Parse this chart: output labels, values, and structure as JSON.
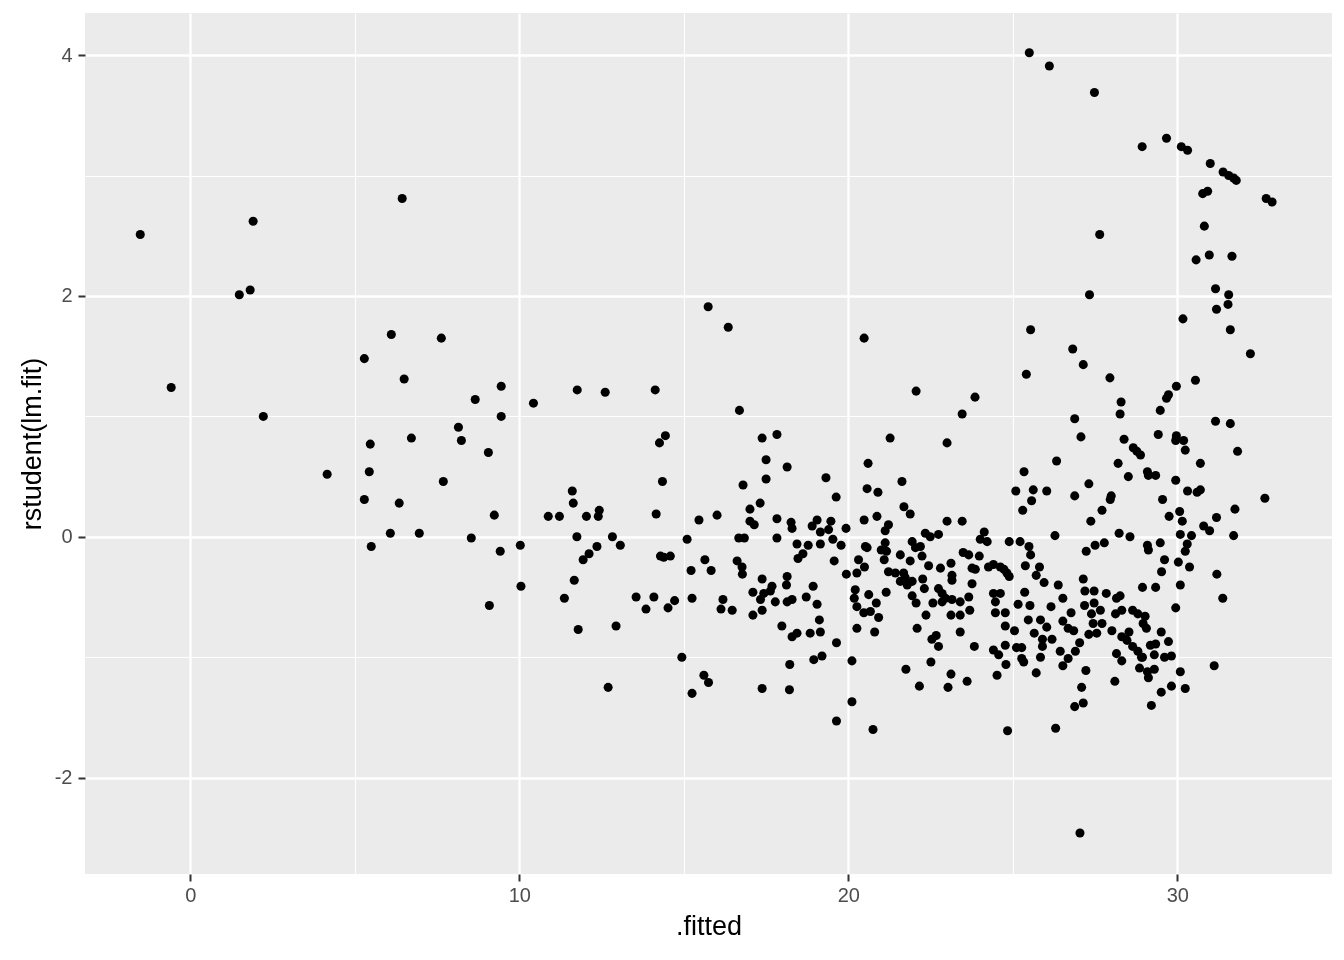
{
  "chart_data": {
    "type": "scatter",
    "xlabel": ".fitted",
    "ylabel": "rstudent(lm.fit)",
    "color": "#000000",
    "marker": "circle",
    "grid": true,
    "xlim": [
      -3.2,
      34.7
    ],
    "ylim": [
      -2.8,
      4.35
    ],
    "xticks": [
      0,
      {
        "value": 5,
        "label": null
      },
      10,
      {
        "value": 15,
        "label": null
      },
      20,
      {
        "value": 25,
        "label": null
      },
      30
    ],
    "yticks": [
      -2,
      {
        "value": -1,
        "label": null
      },
      0,
      {
        "value": 1,
        "label": null
      },
      2,
      {
        "value": 3,
        "label": null
      },
      4
    ],
    "x": [
      -1.52,
      -0.58,
      1.49,
      1.82,
      1.91,
      2.22,
      4.16,
      5.29,
      5.29,
      5.47,
      5.44,
      5.5,
      6.11,
      6.08,
      6.35,
      6.44,
      6.5,
      6.72,
      6.96,
      7.63,
      7.69,
      8.15,
      8.24,
      8.54,
      8.66,
      9.06,
      9.09,
      9.24,
      9.42,
      9.45,
      9.45,
      10.03,
      10.05,
      10.43,
      10.88,
      11.22,
      11.37,
      11.61,
      11.64,
      11.67,
      11.76,
      11.75,
      11.79,
      11.94,
      12.12,
      12.36,
      12.04,
      12.4,
      12.43,
      12.61,
      12.7,
      12.83,
      12.94,
      13.07,
      13.55,
      13.85,
      14.13,
      14.09,
      14.16,
      14.26,
      14.44,
      14.35,
      14.29,
      14.39,
      14.59,
      14.52,
      14.72,
      14.94,
      15.1,
      15.22,
      15.25,
      15.25,
      15.46,
      15.64,
      15.61,
      15.75,
      15.74,
      15.83,
      16.01,
      16.35,
      16.13,
      16.19,
      16.47,
      16.69,
      16.62,
      16.77,
      16.78,
      16.67,
      16.84,
      16.8,
      17.01,
      17.01,
      17.14,
      17.1,
      17.1,
      17.32,
      17.33,
      17.38,
      17.38,
      17.38,
      17.38,
      17.5,
      17.5,
      17.43,
      17.68,
      17.63,
      17.78,
      17.83,
      17.83,
      17.83,
      17.98,
      18.14,
      18.26,
      18.29,
      18.14,
      18.12,
      18.14,
      18.29,
      18.44,
      18.47,
      18.62,
      18.78,
      18.72,
      18.93,
      19.05,
      18.29,
      18.44,
      18.84,
      19.15,
      19.12,
      18.22,
      18.95,
      19.2,
      18.21,
      18.9,
      19.05,
      19.15,
      19.4,
      19.47,
      19.15,
      19.53,
      19.78,
      19.32,
      19.57,
      19.63,
      19.64,
      19.64,
      19.93,
      19.94,
      20.11,
      20.11,
      20.21,
      20.18,
      20.26,
      20.47,
      20.62,
      20.67,
      20.85,
      20.92,
      20.26,
      20.8,
      20.31,
      20.26,
      20.49,
      20.52,
      20.57,
      20.48,
      20.48,
      20.6,
      20.57,
      20.9,
      20.87,
      20.75,
      21.0,
      21.12,
      21.09,
      21.16,
      21.15,
      21.22,
      21.12,
      21.27,
      21.22,
      21.43,
      21.58,
      21.63,
      21.69,
      21.88,
      21.58,
      21.73,
      21.79,
      21.94,
      21.68,
      21.94,
      22.06,
      21.94,
      22.04,
      22.19,
      22.34,
      22.49,
      22.74,
      22.24,
      21.88,
      22.44,
      22.26,
      22.31,
      22.57,
      22.36,
      22.06,
      22.09,
      21.75,
      22.16,
      22.51,
      22.54,
      22.67,
      22.74,
      22.74,
      22.85,
      22.85,
      22.95,
      22.8,
      23.12,
      23.15,
      23.15,
      23.0,
      23.0,
      23.46,
      23.46,
      23.85,
      23.15,
      23.4,
      23.66,
      23.69,
      23.12,
      23.4,
      23.4,
      23.83,
      23.12,
      23.03,
      23.61,
      23.49,
      23.66,
      23.98,
      23.76,
      23.86,
      23.76,
      24.13,
      24.01,
      24.22,
      24.26,
      24.41,
      24.62,
      24.82,
      24.41,
      24.62,
      24.47,
      24.47,
      24.77,
      24.77,
      24.41,
      24.57,
      24.77,
      24.79,
      24.52,
      24.84,
      25.5,
      26.11,
      27.48,
      27.64,
      27.33,
      25.54,
      26.82,
      27.14,
      27.95,
      25.41,
      28.29,
      28.26,
      26.88,
      27.07,
      28.38,
      28.66,
      28.77,
      28.2,
      28.51,
      29.09,
      26.33,
      25.34,
      25.09,
      25.62,
      25.57,
      26.03,
      25.3,
      26.88,
      27.31,
      27.99,
      27.96,
      27.71,
      27.37,
      26.28,
      28.23,
      28.56,
      29.09,
      27.23,
      27.5,
      27.78,
      24.89,
      25.22,
      25.49,
      25.54,
      24.89,
      25.38,
      25.71,
      25.81,
      24.73,
      25.95,
      26.38,
      26.52,
      26.16,
      25.36,
      25.16,
      25.52,
      27.14,
      27.19,
      27.47,
      27.84,
      27.18,
      27.47,
      26.77,
      26.52,
      26.68,
      26.85,
      27.39,
      27.66,
      27.44,
      27.71,
      28.12,
      28.31,
      28.64,
      28.8,
      28.96,
      28.15,
      28.26,
      25.05,
      25.11,
      25.27,
      25.47,
      25.65,
      25.84,
      26.03,
      25.9,
      26.19,
      25.9,
      25.84,
      25.27,
      25.33,
      25.71,
      26.44,
      26.52,
      26.68,
      26.9,
      27.03,
      27.31,
      27.55,
      28.01,
      28.31,
      28.47,
      28.64,
      28.8,
      28.91,
      28.53,
      28.15,
      28.31,
      28.85,
      29.09,
      27.22,
      27.09,
      27.14,
      26.88,
      28.1,
      26.3,
      27.04,
      29.21,
      29.67,
      28.93,
      30.12,
      30.31,
      31.0,
      31.39,
      31.56,
      31.71,
      31.79,
      30.77,
      30.92,
      32.7,
      32.88,
      30.82,
      30.57,
      30.97,
      31.66,
      31.16,
      31.56,
      31.54,
      31.19,
      30.17,
      31.61,
      32.22,
      30.55,
      29.97,
      29.73,
      29.67,
      29.48,
      31.16,
      31.61,
      29.42,
      29.97,
      29.95,
      30.19,
      30.24,
      31.83,
      28.88,
      30.7,
      29.12,
      29.34,
      29.95,
      30.31,
      30.6,
      30.7,
      32.66,
      29.55,
      31.75,
      30.07,
      29.75,
      30.15,
      31.19,
      30.09,
      30.43,
      30.8,
      30.98,
      31.71,
      29.48,
      29.12,
      30.3,
      30.24,
      29.61,
      30.03,
      30.37,
      29.52,
      31.2,
      28.94,
      29.34,
      30.09,
      31.38,
      29.95,
      29.02,
      29.06,
      29.51,
      29.73,
      29.18,
      29.34,
      29.3,
      29.61,
      29.82,
      28.94,
      31.12,
      30.09,
      29.3,
      29.12,
      29.51,
      29.82,
      30.24
    ],
    "values": [
      2.51,
      1.24,
      2.01,
      2.05,
      2.62,
      1.0,
      0.52,
      1.48,
      0.31,
      0.77,
      0.54,
      -0.08,
      1.68,
      0.03,
      0.28,
      2.81,
      1.31,
      0.82,
      0.03,
      1.65,
      0.46,
      0.91,
      0.8,
      -0.01,
      1.14,
      0.7,
      -0.57,
      0.18,
      -0.12,
      1.25,
      1.0,
      -0.07,
      -0.41,
      1.11,
      0.17,
      0.17,
      -0.51,
      0.38,
      0.28,
      -0.36,
      1.22,
      0.0,
      -0.77,
      -0.19,
      -0.14,
      -0.08,
      0.17,
      0.17,
      0.22,
      1.2,
      -1.25,
      0.0,
      -0.74,
      -0.07,
      -0.5,
      -0.6,
      1.22,
      -0.5,
      0.19,
      0.78,
      0.84,
      0.46,
      -0.16,
      -0.17,
      -0.16,
      -0.59,
      -0.53,
      -1.0,
      -0.02,
      -0.28,
      -1.3,
      -0.51,
      0.14,
      -0.19,
      -1.15,
      -1.21,
      1.91,
      -0.28,
      0.18,
      1.74,
      -0.6,
      -0.52,
      -0.61,
      1.05,
      -0.2,
      -0.25,
      -0.31,
      -0.01,
      -0.01,
      0.43,
      0.23,
      0.13,
      0.1,
      -0.46,
      -0.65,
      0.28,
      -0.52,
      0.82,
      -0.35,
      -0.61,
      -1.26,
      0.64,
      0.48,
      -0.47,
      -0.41,
      -0.45,
      -0.54,
      0.85,
      0.15,
      -0.01,
      -0.74,
      0.58,
      0.12,
      0.07,
      -0.33,
      -0.4,
      -0.54,
      -0.52,
      -0.06,
      -0.18,
      -0.14,
      -0.07,
      -0.5,
      -0.41,
      -0.56,
      -0.83,
      -0.8,
      -0.8,
      -0.79,
      -0.69,
      -1.06,
      -1.02,
      -0.99,
      -1.27,
      0.09,
      0.14,
      0.04,
      0.06,
      0.13,
      -0.06,
      -0.02,
      -0.07,
      0.49,
      -0.2,
      0.33,
      -0.88,
      -1.53,
      0.07,
      -0.31,
      -1.03,
      -1.37,
      -0.44,
      -0.51,
      -0.58,
      -0.63,
      -0.48,
      -0.62,
      -0.55,
      -0.67,
      -0.76,
      -0.79,
      -0.19,
      -0.3,
      -0.25,
      -0.08,
      -0.09,
      0.14,
      1.65,
      0.61,
      0.4,
      0.37,
      0.17,
      -1.6,
      -0.11,
      -0.05,
      -0.19,
      -0.12,
      -0.46,
      0.1,
      0.05,
      0.82,
      -0.29,
      -0.3,
      -0.15,
      0.46,
      0.25,
      0.19,
      -0.37,
      -0.34,
      -0.4,
      -0.37,
      -0.3,
      -0.49,
      -0.55,
      -0.04,
      -0.09,
      -0.08,
      0.03,
      0.0,
      0.02,
      -0.16,
      -0.2,
      -0.24,
      -0.35,
      -0.43,
      -0.55,
      -0.65,
      1.21,
      -0.76,
      -1.1,
      -1.24,
      -1.04,
      -0.85,
      -0.82,
      -0.91,
      -0.43,
      -0.47,
      -0.54,
      -0.51,
      -0.26,
      -0.22,
      -0.32,
      -0.36,
      0.78,
      0.13,
      0.13,
      1.02,
      1.16,
      -0.52,
      -0.54,
      -0.5,
      -0.61,
      -0.65,
      -0.65,
      -0.79,
      -0.91,
      -1.14,
      -1.25,
      -1.2,
      -0.13,
      -0.15,
      -0.16,
      -0.26,
      -0.27,
      -0.39,
      0.04,
      -0.02,
      -0.04,
      -0.25,
      -0.23,
      -0.25,
      -0.3,
      -0.47,
      -0.47,
      -0.54,
      -0.63,
      -0.63,
      -0.74,
      -0.94,
      -0.98,
      -0.9,
      -1.06,
      -1.15,
      -1.61,
      4.02,
      3.91,
      3.69,
      2.51,
      2.01,
      1.72,
      1.56,
      1.43,
      1.32,
      1.35,
      1.12,
      1.02,
      0.98,
      0.83,
      0.81,
      0.74,
      0.71,
      0.61,
      0.5,
      0.54,
      0.63,
      0.54,
      0.38,
      0.39,
      0.3,
      0.38,
      0.22,
      0.34,
      0.44,
      0.34,
      0.31,
      0.22,
      0.13,
      0.01,
      0.03,
      0.0,
      -0.07,
      -0.12,
      -0.07,
      -0.05,
      -0.04,
      -0.04,
      -0.08,
      -0.15,
      -0.33,
      -0.24,
      -0.32,
      -0.25,
      -0.27,
      -0.38,
      -0.4,
      -0.51,
      -0.58,
      -0.46,
      -0.56,
      -0.57,
      -0.35,
      -0.45,
      -0.45,
      -0.47,
      -0.57,
      -0.55,
      -0.63,
      -0.7,
      -0.76,
      -0.78,
      -0.64,
      -0.61,
      -0.72,
      -0.72,
      -0.64,
      -0.61,
      -0.61,
      -0.64,
      -0.72,
      -0.51,
      -0.49,
      -0.78,
      -0.92,
      -0.92,
      -0.69,
      -0.8,
      -0.69,
      -0.75,
      -0.85,
      -0.85,
      -0.91,
      -1.0,
      -1.01,
      -1.04,
      -1.13,
      -0.95,
      -1.07,
      -1.01,
      -0.95,
      -0.88,
      -0.81,
      -0.8,
      -0.78,
      -0.83,
      -0.86,
      -0.91,
      -0.95,
      -1.0,
      -0.79,
      -0.97,
      -1.03,
      -1.09,
      -1.12,
      -1.11,
      -1.25,
      -1.38,
      -1.41,
      -1.2,
      -1.59,
      -2.46,
      -1.4,
      3.31,
      3.24,
      3.24,
      3.21,
      3.1,
      3.03,
      3.0,
      2.98,
      2.96,
      2.85,
      2.87,
      2.81,
      2.78,
      2.58,
      2.3,
      2.34,
      2.33,
      2.06,
      2.01,
      1.93,
      1.89,
      1.81,
      1.72,
      1.52,
      1.3,
      1.25,
      1.18,
      1.15,
      1.05,
      0.96,
      0.94,
      0.85,
      0.84,
      0.8,
      0.8,
      0.72,
      0.71,
      0.68,
      0.61,
      0.51,
      0.51,
      0.47,
      0.38,
      0.37,
      0.39,
      0.32,
      0.31,
      0.23,
      0.21,
      0.17,
      0.13,
      0.16,
      0.02,
      0.01,
      0.09,
      0.05,
      0.01,
      -0.05,
      -0.11,
      -0.06,
      -0.12,
      -0.19,
      -0.21,
      -0.25,
      -0.29,
      -0.31,
      -0.42,
      -0.42,
      -0.4,
      -0.51,
      -0.59,
      -0.66,
      -0.76,
      -0.79,
      -0.87,
      -0.9,
      -0.89,
      -0.98,
      -1.0,
      -0.99,
      -1.0,
      -1.07,
      -1.12,
      -1.1,
      -1.17,
      -1.29,
      -1.24,
      -1.26
    ]
  }
}
